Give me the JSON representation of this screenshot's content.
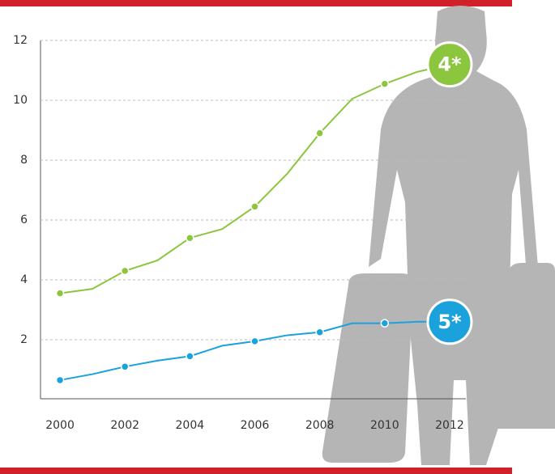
{
  "chart_data": {
    "type": "line",
    "x": [
      2000,
      2001,
      2002,
      2003,
      2004,
      2005,
      2006,
      2007,
      2008,
      2009,
      2010,
      2011,
      2012
    ],
    "series": [
      {
        "badge": "4*",
        "color": "#8cc63f",
        "values": [
          3.55,
          3.7,
          4.3,
          4.65,
          5.4,
          5.7,
          6.45,
          7.55,
          8.9,
          10.05,
          10.55,
          10.95,
          11.2
        ]
      },
      {
        "badge": "5*",
        "color": "#1ba1dc",
        "values": [
          0.65,
          0.85,
          1.1,
          1.3,
          1.45,
          1.8,
          1.95,
          2.15,
          2.25,
          2.55,
          2.55,
          2.6,
          2.6
        ]
      }
    ],
    "xlim": [
      1999.4,
      2012.5
    ],
    "xticks": [
      2000,
      2002,
      2004,
      2006,
      2008,
      2010,
      2012
    ],
    "ylim": [
      0,
      12
    ],
    "yticks": [
      2,
      4,
      6,
      8,
      10,
      12
    ],
    "grid": true
  }
}
